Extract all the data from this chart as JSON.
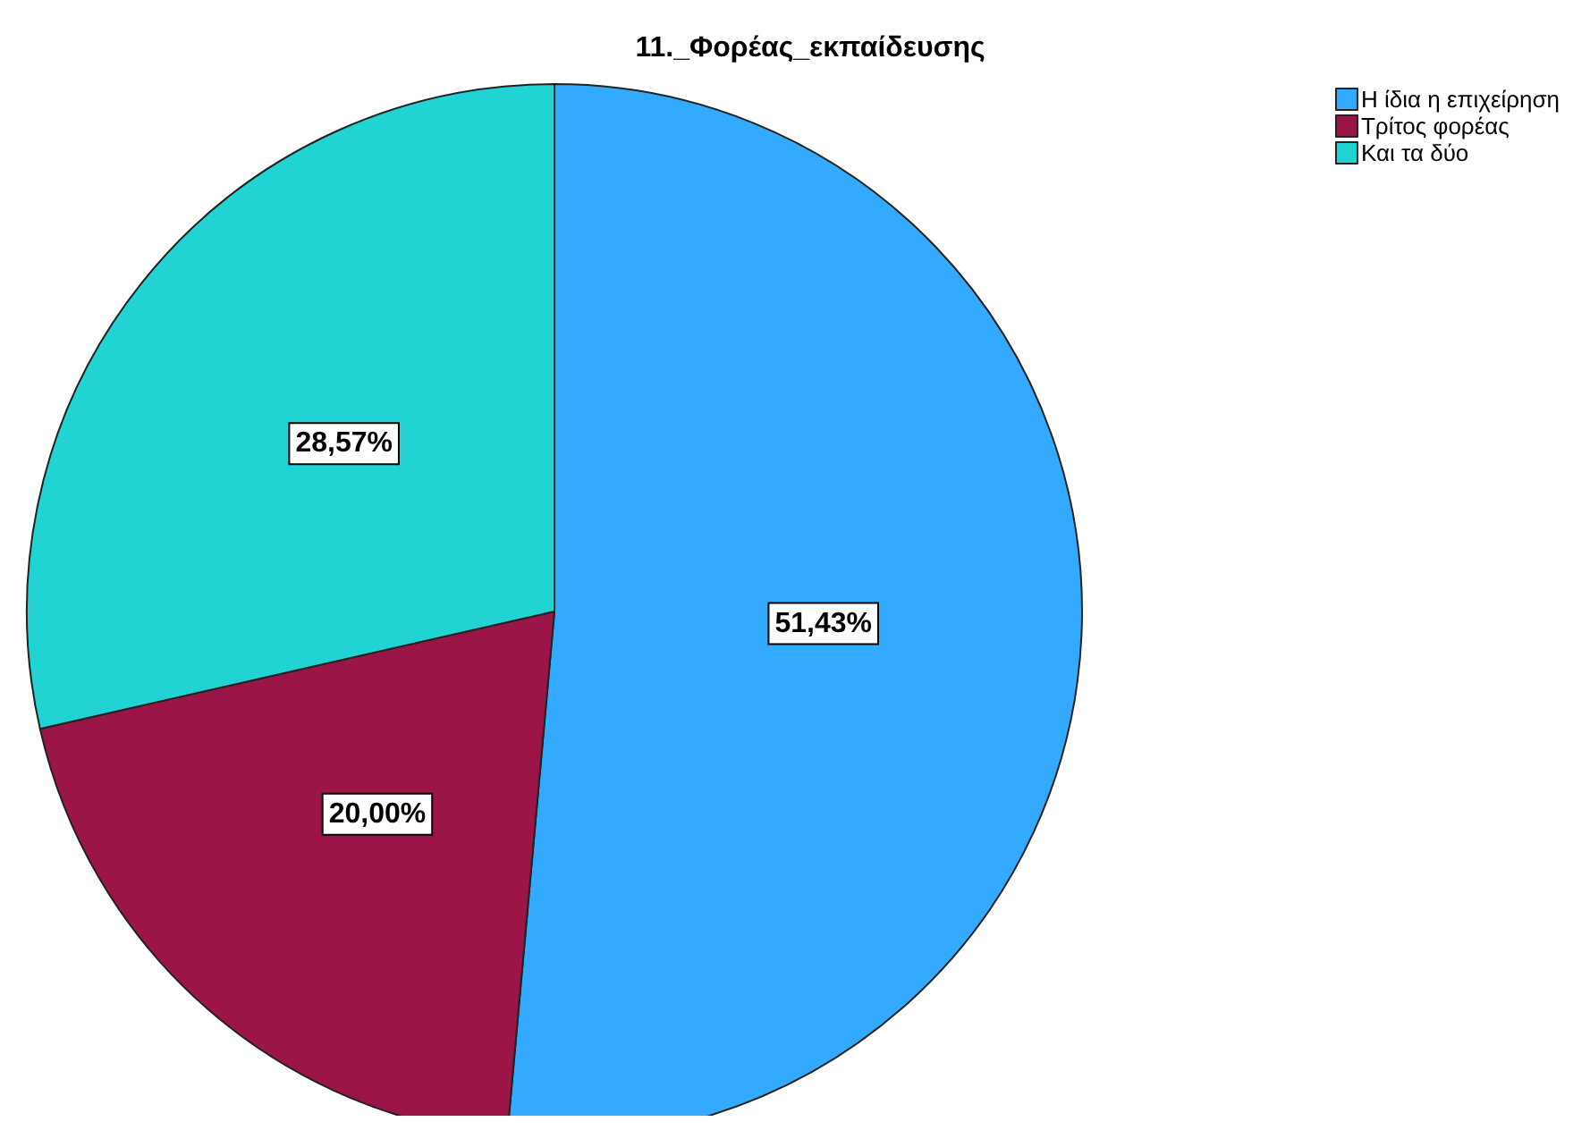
{
  "chart_data": {
    "type": "pie",
    "title": "11._Φορέας_εκπαίδευσης",
    "categories": [
      "Η ίδια η επιχείρηση",
      "Τρίτος φορέας",
      "Και τα δύο"
    ],
    "values": [
      51.43,
      20.0,
      28.57
    ],
    "colors": [
      "#33aaff",
      "#9b1548",
      "#22d3d3"
    ],
    "value_labels": [
      "51,43%",
      "20,00%",
      "28,57%"
    ],
    "legend": "top right"
  }
}
